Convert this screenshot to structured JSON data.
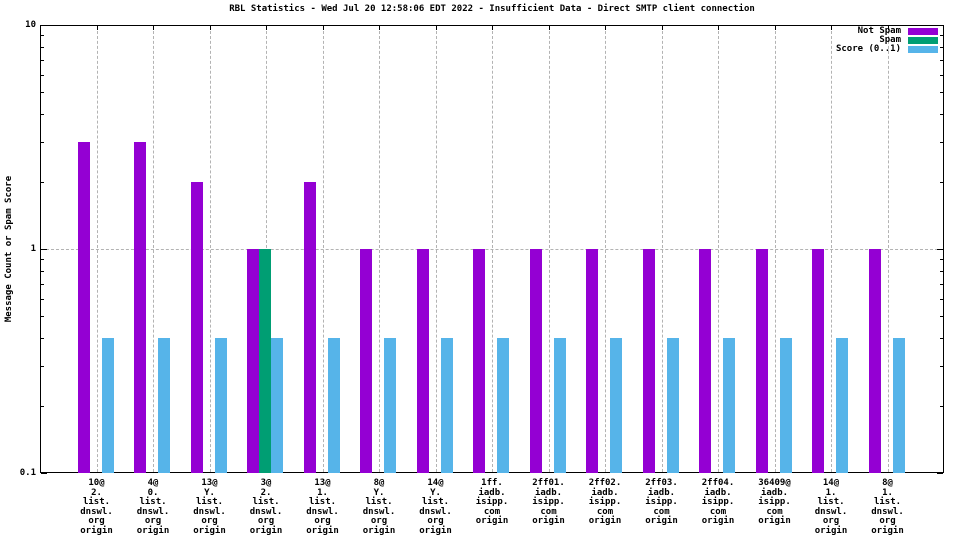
{
  "title": "RBL Statistics - Wed Jul 20 12:58:06 EDT 2022 - Insufficient Data - Direct SMTP client connection",
  "colors": {
    "not_spam": "#9400d3",
    "spam": "#009e73",
    "score": "#56b4e9",
    "grid": "#b3b3b3",
    "axis": "#000000",
    "background": "#ffffff"
  },
  "legend": {
    "position": "top-right",
    "items": [
      {
        "label": "Not Spam",
        "color": "#9400d3"
      },
      {
        "label": "Spam",
        "color": "#009e73"
      },
      {
        "label": "Score (0..1)",
        "color": "#56b4e9"
      }
    ]
  },
  "chart_data": {
    "type": "bar",
    "title": "RBL Statistics - Wed Jul 20 12:58:06 EDT 2022 - Insufficient Data - Direct SMTP client connection",
    "xlabel": "",
    "ylabel": "Message Count or Spam Score",
    "yscale": "log",
    "ylim": [
      0.1,
      10
    ],
    "yticks": [
      {
        "label": "10",
        "value": 10
      },
      {
        "label": "1",
        "value": 1
      },
      {
        "label": "0.1",
        "value": 0.1
      }
    ],
    "grid": {
      "horizontal_at": [
        1
      ],
      "vertical_per_category": true,
      "style": "dashed-gray"
    },
    "legend_position": "top-right",
    "categories": [
      [
        "10@",
        "2.",
        "list.",
        "dnswl.",
        "org",
        "origin"
      ],
      [
        "4@",
        "0.",
        "list.",
        "dnswl.",
        "org",
        "origin"
      ],
      [
        "13@",
        "Y.",
        "list.",
        "dnswl.",
        "org",
        "origin"
      ],
      [
        "3@",
        "2.",
        "list.",
        "dnswl.",
        "org",
        "origin"
      ],
      [
        "13@",
        "1.",
        "list.",
        "dnswl.",
        "org",
        "origin"
      ],
      [
        "8@",
        "Y.",
        "list.",
        "dnswl.",
        "org",
        "origin"
      ],
      [
        "14@",
        "Y.",
        "list.",
        "dnswl.",
        "org",
        "origin"
      ],
      [
        "1ff.",
        "iadb.",
        "isipp.",
        "com",
        "origin"
      ],
      [
        "2ff01.",
        "iadb.",
        "isipp.",
        "com",
        "origin"
      ],
      [
        "2ff02.",
        "iadb.",
        "isipp.",
        "com",
        "origin"
      ],
      [
        "2ff03.",
        "iadb.",
        "isipp.",
        "com",
        "origin"
      ],
      [
        "2ff04.",
        "iadb.",
        "isipp.",
        "com",
        "origin"
      ],
      [
        "36409@",
        "iadb.",
        "isipp.",
        "com",
        "origin"
      ],
      [
        "14@",
        "1.",
        "list.",
        "dnswl.",
        "org",
        "origin"
      ],
      [
        "8@",
        "1.",
        "list.",
        "dnswl.",
        "org",
        "origin"
      ]
    ],
    "series": [
      {
        "name": "Not Spam",
        "color": "#9400d3",
        "values": [
          3,
          3,
          2,
          1,
          2,
          1,
          1,
          1,
          1,
          1,
          1,
          1,
          1,
          1,
          1
        ]
      },
      {
        "name": "Spam",
        "color": "#009e73",
        "values": [
          0,
          0,
          0,
          1,
          0,
          0,
          0,
          0,
          0,
          0,
          0,
          0,
          0,
          0,
          0
        ]
      },
      {
        "name": "Score (0..1)",
        "color": "#56b4e9",
        "values": [
          0.4,
          0.4,
          0.4,
          0.4,
          0.4,
          0.4,
          0.4,
          0.4,
          0.4,
          0.4,
          0.4,
          0.4,
          0.4,
          0.4,
          0.4
        ]
      }
    ]
  }
}
